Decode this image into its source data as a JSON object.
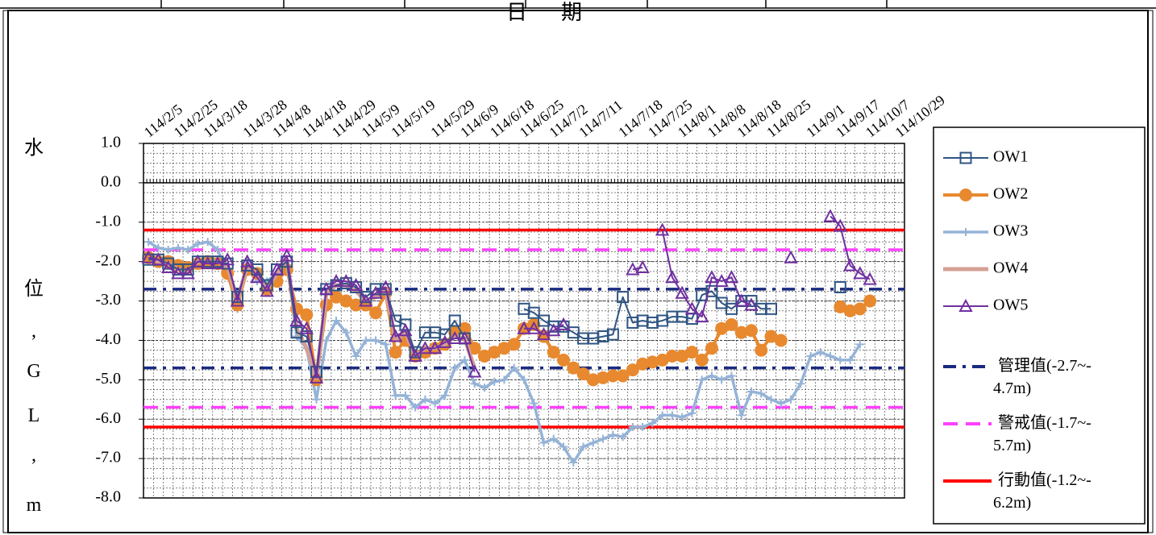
{
  "chart_data": {
    "type": "line",
    "x_label": "日期",
    "y_label": "水位,GL,m",
    "categories": [
      "114/2/5",
      null,
      null,
      "114/2/25",
      null,
      null,
      "114/3/18",
      null,
      null,
      null,
      "114/3/28",
      null,
      null,
      "114/4/8",
      null,
      null,
      "114/4/18",
      null,
      null,
      "114/4/29",
      null,
      null,
      "114/5/9",
      null,
      null,
      "114/5/19",
      null,
      null,
      null,
      "114/5/29",
      null,
      null,
      "114/6/9",
      null,
      null,
      "114/6/18",
      null,
      null,
      "114/6/25",
      null,
      null,
      "114/7/2",
      null,
      null,
      "114/7/11",
      null,
      null,
      null,
      "114/7/18",
      null,
      null,
      "114/7/25",
      null,
      null,
      "114/8/1",
      null,
      null,
      "114/8/8",
      null,
      null,
      "114/8/18",
      null,
      null,
      "114/8/25",
      null,
      null,
      null,
      "114/9/1",
      null,
      null,
      "114/9/17",
      null,
      null,
      "114/10/7",
      null,
      null,
      "114/10/29"
    ],
    "ylim": [
      -8,
      1
    ],
    "yticks": [
      {
        "value": 1,
        "label": "1.0"
      },
      {
        "value": 0,
        "label": "0.0"
      },
      {
        "value": -1,
        "label": "-1.0"
      },
      {
        "value": -2,
        "label": "-2.0"
      },
      {
        "value": -3,
        "label": "-3.0"
      },
      {
        "value": -4,
        "label": "-4.0"
      },
      {
        "value": -5,
        "label": "-5.0"
      },
      {
        "value": -6,
        "label": "-6.0"
      },
      {
        "value": -7,
        "label": "-7.0"
      },
      {
        "value": -8,
        "label": "-8.0"
      }
    ],
    "grid": true,
    "series": [
      {
        "name": "OW1",
        "color": "#2f5583",
        "marker": "square",
        "values": [
          -1.95,
          -1.95,
          -2.05,
          -2.2,
          -2.2,
          -2.0,
          -2.0,
          -2.0,
          -2.05,
          -2.9,
          -2.1,
          -2.2,
          -2.6,
          -2.2,
          -2.0,
          -3.8,
          -3.9,
          -4.8,
          -2.7,
          -2.6,
          -2.55,
          -2.65,
          -2.9,
          -2.7,
          -2.7,
          -3.5,
          -3.6,
          -4.3,
          -3.8,
          -3.8,
          -3.85,
          -3.5,
          -3.95,
          null,
          null,
          null,
          null,
          null,
          -3.2,
          -3.3,
          -3.5,
          -3.65,
          -3.65,
          -3.8,
          -3.95,
          -3.95,
          -3.9,
          -3.85,
          -2.9,
          -3.55,
          -3.5,
          -3.55,
          -3.5,
          -3.4,
          -3.4,
          -3.45,
          -2.85,
          -2.75,
          -3.05,
          -3.2,
          -3.0,
          -3.0,
          -3.2,
          -3.2,
          null,
          null,
          null,
          null,
          null,
          null,
          -2.65,
          null,
          null,
          null,
          null,
          null,
          null
        ]
      },
      {
        "name": "OW2",
        "color": "#e8892f",
        "marker": "circle",
        "values": [
          -1.9,
          -2.0,
          -2.0,
          -2.1,
          -2.15,
          -2.05,
          -2.0,
          -2.05,
          -2.3,
          -3.1,
          -2.2,
          -2.3,
          -2.7,
          -2.5,
          -2.2,
          -3.2,
          -3.35,
          -5.0,
          -3.1,
          -2.9,
          -3.0,
          -3.1,
          -3.1,
          -3.3,
          -2.8,
          -4.3,
          -4.0,
          -4.4,
          -4.3,
          -4.2,
          -4.1,
          -3.8,
          -3.7,
          -4.2,
          -4.4,
          -4.3,
          -4.2,
          -4.1,
          -3.7,
          -3.6,
          -3.9,
          -4.3,
          -4.5,
          -4.7,
          -4.85,
          -5.0,
          -4.95,
          -4.9,
          -4.9,
          -4.75,
          -4.6,
          -4.55,
          -4.5,
          -4.4,
          -4.4,
          -4.3,
          -4.5,
          -4.2,
          -3.7,
          -3.6,
          -3.8,
          -3.75,
          -4.25,
          -3.9,
          -4.0,
          null,
          null,
          null,
          null,
          null,
          -3.15,
          -3.25,
          -3.2,
          -3.0,
          null,
          null,
          null
        ]
      },
      {
        "name": "OW3",
        "color": "#95b3d7",
        "marker": "plus",
        "values": [
          -1.5,
          -1.65,
          -1.7,
          -1.65,
          -1.7,
          -1.55,
          -1.5,
          -1.7,
          -2.3,
          -3.2,
          -2.0,
          -2.5,
          -2.5,
          -2.3,
          -2.0,
          -3.9,
          -4.2,
          -5.5,
          -4.0,
          -3.5,
          -3.8,
          -4.4,
          -4.0,
          -4.0,
          -4.1,
          -5.4,
          -5.4,
          -5.7,
          -5.5,
          -5.6,
          -5.4,
          -4.7,
          -4.5,
          -5.1,
          -5.2,
          -5.05,
          -5.0,
          -4.7,
          -5.0,
          -5.6,
          -6.6,
          -6.5,
          -6.7,
          -7.1,
          -6.7,
          -6.6,
          -6.5,
          -6.4,
          -6.45,
          -6.2,
          -6.2,
          -6.1,
          -5.9,
          -5.9,
          -5.95,
          -5.85,
          -5.0,
          -4.9,
          -5.0,
          -4.9,
          -5.9,
          -5.3,
          -5.35,
          -5.5,
          -5.6,
          -5.5,
          -5.1,
          -4.4,
          -4.3,
          -4.4,
          -4.5,
          -4.5,
          -4.1,
          null,
          null,
          null,
          null
        ]
      },
      {
        "name": "OW4",
        "color": "#d4a094",
        "marker": "none",
        "values": [
          -1.9,
          -2.0,
          -2.05,
          -2.2,
          -2.25,
          -2.0,
          -2.0,
          -2.0,
          -2.1,
          -3.0,
          -2.1,
          -2.35,
          -2.7,
          -2.3,
          -1.95,
          -3.7,
          -4.2,
          -4.95,
          -2.8,
          -2.6,
          -2.6,
          -2.75,
          -3.0,
          -2.9,
          -2.7,
          -4.0,
          -3.8,
          -4.4,
          -4.2,
          -4.2,
          -4.1,
          -3.9,
          -3.95,
          -4.7,
          null,
          null,
          null,
          null,
          null,
          null,
          null,
          null,
          null,
          null,
          null,
          null,
          null,
          null,
          null,
          null,
          null,
          null,
          null,
          null,
          null,
          null,
          null,
          null,
          null,
          null,
          null,
          null,
          null,
          null,
          null,
          null,
          null,
          null,
          null,
          null,
          null,
          null,
          null,
          null,
          null,
          null,
          null
        ]
      },
      {
        "name": "OW5",
        "color": "#7030a0",
        "marker": "triangle",
        "values": [
          -1.9,
          -1.95,
          -2.15,
          -2.3,
          -2.3,
          -2.0,
          -2.05,
          -2.05,
          -1.95,
          -3.0,
          -2.0,
          -2.4,
          -2.75,
          -2.2,
          -1.85,
          -3.5,
          -3.7,
          -4.95,
          -2.7,
          -2.5,
          -2.5,
          -2.6,
          -3.0,
          -2.8,
          -2.65,
          -3.9,
          -3.75,
          -4.4,
          -4.2,
          -4.2,
          -4.05,
          -3.95,
          -3.95,
          -4.8,
          null,
          null,
          null,
          null,
          -3.7,
          -3.7,
          -3.85,
          -3.75,
          -3.6,
          null,
          null,
          null,
          null,
          null,
          null,
          -2.2,
          -2.15,
          null,
          -1.2,
          -2.4,
          -2.8,
          -3.2,
          -3.4,
          -2.4,
          -2.5,
          -2.4,
          -3.0,
          -3.1,
          null,
          null,
          null,
          -1.9,
          null,
          null,
          null,
          -0.85,
          -1.1,
          -2.1,
          -2.3,
          -2.45,
          null,
          null,
          null
        ]
      }
    ],
    "reference_lines": [
      {
        "name": "管理值(-2.7~-4.7m)",
        "color": "#1a2a80",
        "style": "dashdot",
        "values": [
          -2.7,
          -4.7
        ]
      },
      {
        "name": "警戒值(-1.7~-5.7m)",
        "color": "#ff40ff",
        "style": "dashed",
        "values": [
          -1.7,
          -5.7
        ]
      },
      {
        "name": "行動值(-1.2~-6.2m)",
        "color": "#ff0000",
        "style": "solid",
        "values": [
          -1.2,
          -6.2
        ]
      }
    ]
  }
}
